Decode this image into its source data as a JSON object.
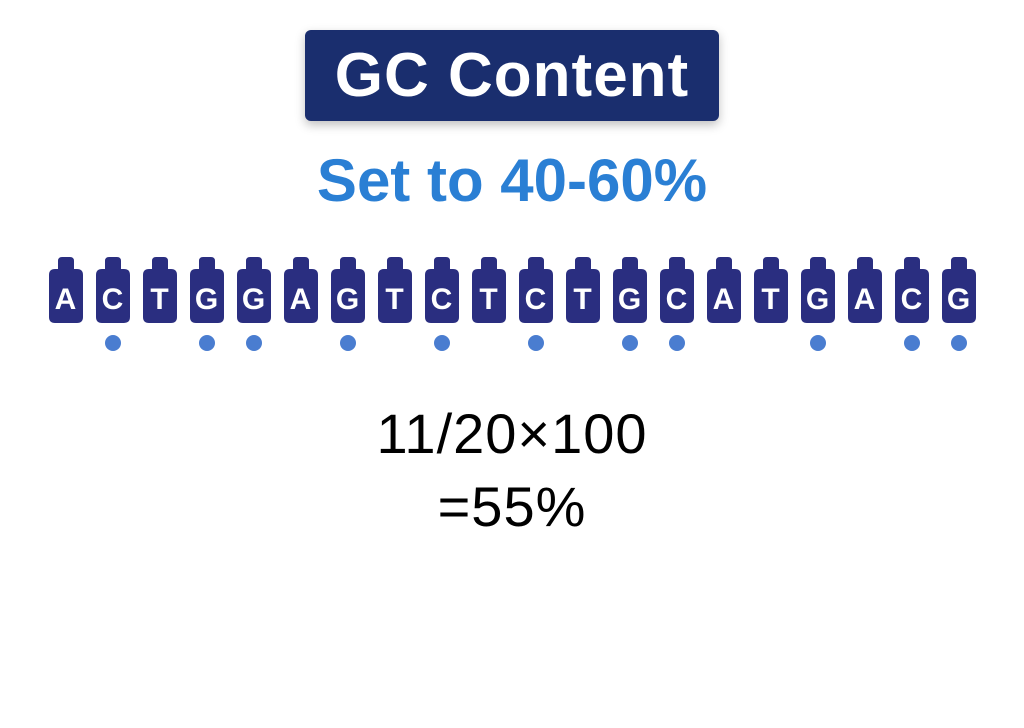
{
  "title": {
    "text": "GC Content",
    "bg": "#1a2e6e",
    "color": "#ffffff",
    "fontsize": 62
  },
  "subtitle": {
    "text": "Set to 40-60%",
    "color": "#2a7fd4",
    "fontsize": 60
  },
  "sequence": {
    "tile_bg": "#2a2e80",
    "letter_color": "#ffffff",
    "dot_color": "#4a7dd0",
    "nucleotides": [
      {
        "base": "A",
        "gc": false
      },
      {
        "base": "C",
        "gc": true
      },
      {
        "base": "T",
        "gc": false
      },
      {
        "base": "G",
        "gc": true
      },
      {
        "base": "G",
        "gc": true
      },
      {
        "base": "A",
        "gc": false
      },
      {
        "base": "G",
        "gc": true
      },
      {
        "base": "T",
        "gc": false
      },
      {
        "base": "C",
        "gc": true
      },
      {
        "base": "T",
        "gc": false
      },
      {
        "base": "C",
        "gc": true
      },
      {
        "base": "T",
        "gc": false
      },
      {
        "base": "G",
        "gc": true
      },
      {
        "base": "C",
        "gc": true
      },
      {
        "base": "A",
        "gc": false
      },
      {
        "base": "T",
        "gc": false
      },
      {
        "base": "G",
        "gc": true
      },
      {
        "base": "A",
        "gc": false
      },
      {
        "base": "C",
        "gc": true
      },
      {
        "base": "G",
        "gc": true
      }
    ]
  },
  "calculation": {
    "line1": "11/20×100",
    "line2": "=55%",
    "color": "#000000",
    "fontsize": 56
  },
  "background": "#ffffff"
}
